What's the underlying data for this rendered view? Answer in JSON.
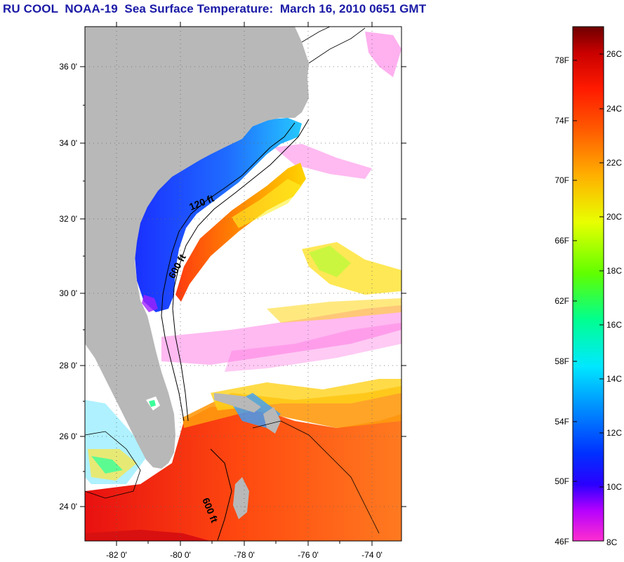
{
  "title": "RU COOL  NOAA-19  Sea Surface Temperature:  March 16, 2010 0651 GMT",
  "map": {
    "lat_ticks": [
      "36 0'",
      "34 0'",
      "32 0'",
      "30 0'",
      "28 0'",
      "26 0'",
      "24 0'"
    ],
    "lon_ticks": [
      "-82 0'",
      "-80 0'",
      "-78 0'",
      "-76 0'",
      "-74 0'"
    ],
    "contour_labels": [
      "120 ft",
      "600 ft",
      "600 ft"
    ]
  },
  "colorbar": {
    "fahrenheit": [
      "78F",
      "74F",
      "70F",
      "66F",
      "62F",
      "58F",
      "54F",
      "50F",
      "46F"
    ],
    "celsius": [
      "26C",
      "24C",
      "22C",
      "20C",
      "18C",
      "16C",
      "14C",
      "12C",
      "10C",
      "8C"
    ]
  },
  "colors": {
    "land": "#b8b8b8",
    "title": "#1a1aa6",
    "cold": "#1a3cff",
    "warm": "#ff3a10"
  }
}
